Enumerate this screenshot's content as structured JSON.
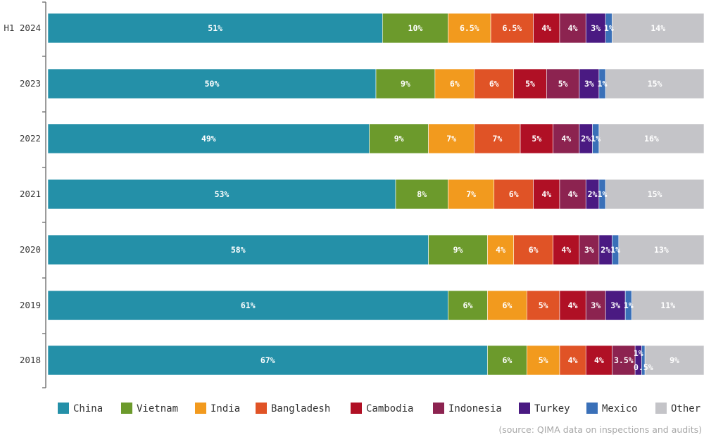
{
  "chart_data": {
    "type": "bar",
    "orientation": "horizontal",
    "stacked": true,
    "categories": [
      "H1 2024",
      "2023",
      "2022",
      "2021",
      "2020",
      "2019",
      "2018"
    ],
    "series": [
      {
        "name": "China",
        "color": "#2490a8",
        "values": [
          51,
          50,
          49,
          53,
          58,
          61,
          67
        ],
        "labels": [
          "51%",
          "50%",
          "49%",
          "53%",
          "58%",
          "61%",
          "67%"
        ]
      },
      {
        "name": "Vietnam",
        "color": "#6c9a2c",
        "values": [
          10,
          9,
          9,
          8,
          9,
          6,
          6
        ],
        "labels": [
          "10%",
          "9%",
          "9%",
          "8%",
          "9%",
          "6%",
          "6%"
        ]
      },
      {
        "name": "India",
        "color": "#f29a1e",
        "values": [
          6.5,
          6,
          7,
          7,
          4,
          6,
          5
        ],
        "labels": [
          "6.5%",
          "6%",
          "7%",
          "7%",
          "4%",
          "6%",
          "5%"
        ]
      },
      {
        "name": "Bangladesh",
        "color": "#e05326",
        "values": [
          6.5,
          6,
          7,
          6,
          6,
          5,
          4
        ],
        "labels": [
          "6.5%",
          "6%",
          "7%",
          "6%",
          "6%",
          "5%",
          "4%"
        ]
      },
      {
        "name": "Cambodia",
        "color": "#b01025",
        "values": [
          4,
          5,
          5,
          4,
          4,
          4,
          4
        ],
        "labels": [
          "4%",
          "5%",
          "5%",
          "4%",
          "4%",
          "4%",
          "4%"
        ]
      },
      {
        "name": "Indonesia",
        "color": "#8c2350",
        "values": [
          4,
          5,
          4,
          4,
          3,
          3,
          3.5
        ],
        "labels": [
          "4%",
          "5%",
          "4%",
          "4%",
          "3%",
          "3%",
          "3.5%"
        ]
      },
      {
        "name": "Turkey",
        "color": "#4a1a82",
        "values": [
          3,
          3,
          2,
          2,
          2,
          3,
          1
        ],
        "labels": [
          "3%",
          "3%",
          "2%",
          "2%",
          "2%",
          "3%",
          "1%"
        ]
      },
      {
        "name": "Mexico",
        "color": "#3a70b8",
        "values": [
          1,
          1,
          1,
          1,
          1,
          1,
          0.5
        ],
        "labels": [
          "1%",
          "1%",
          "1%",
          "1%",
          "1%",
          "1%",
          "0.5%"
        ]
      },
      {
        "name": "Other",
        "color": "#c4c4c8",
        "values": [
          14,
          15,
          16,
          15,
          13,
          11,
          9
        ],
        "labels": [
          "14%",
          "15%",
          "16%",
          "15%",
          "13%",
          "11%",
          "9%"
        ]
      }
    ],
    "xlim": [
      0,
      100
    ],
    "grid": false,
    "legend_position": "bottom"
  },
  "source": "(source: QIMA data on inspections and audits)"
}
